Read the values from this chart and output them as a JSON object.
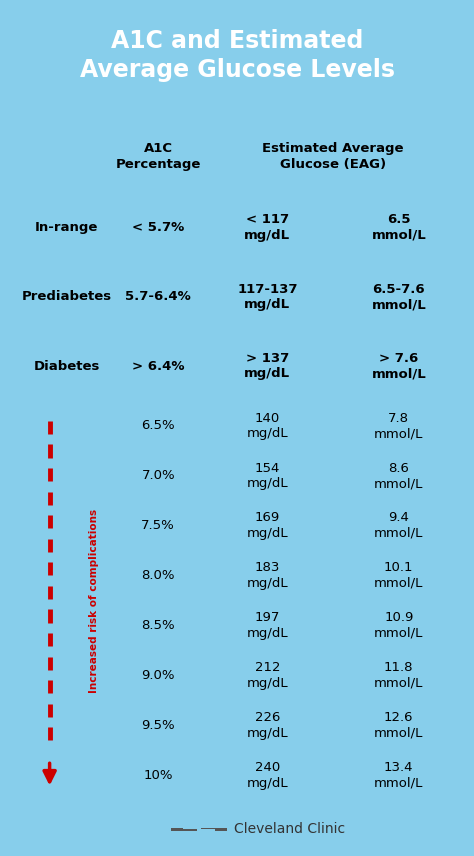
{
  "title": "A1C and Estimated\nAverage Glucose Levels",
  "title_bg": "#1a9fcc",
  "title_color": "#ffffff",
  "bg_color": "#87ceeb",
  "col_header_texts": [
    "A1C\nPercentage",
    "Estimated Average\nGlucose (EAG)"
  ],
  "rows": [
    {
      "label": "In-range",
      "a1c": "< 5.7%",
      "mgdl": "< 117\nmg/dL",
      "mmol": "6.5\nmmol/L",
      "label_bg": "#ffffff",
      "a1c_bg": "#7ec850",
      "mgdl_bg": "#7ec850",
      "mmol_bg": "#e8e040"
    },
    {
      "label": "Prediabetes",
      "a1c": "5.7-6.4%",
      "mgdl": "117-137\nmg/dL",
      "mmol": "6.5-7.6\nmmol/L",
      "label_bg": "#ffffff",
      "a1c_bg": "#f0e040",
      "mgdl_bg": "#f0e040",
      "mmol_bg": "#f0e040"
    },
    {
      "label": "Diabetes",
      "a1c": "> 6.4%",
      "mgdl": "> 137\nmg/dL",
      "mmol": "> 7.6\nmmol/L",
      "label_bg": "#ffffff",
      "a1c_bg": "#f08080",
      "mgdl_bg": "#f08080",
      "mmol_bg": "#f08080"
    }
  ],
  "detail_rows": [
    {
      "a1c": "6.5%",
      "mgdl": "140\nmg/dL",
      "mmol": "7.8\nmmol/L",
      "bg": "#f5a0a0"
    },
    {
      "a1c": "7.0%",
      "mgdl": "154\nmg/dL",
      "mmol": "8.6\nmmol/L",
      "bg": "#f09090"
    },
    {
      "a1c": "7.5%",
      "mgdl": "169\nmg/dL",
      "mmol": "9.4\nmmol/L",
      "bg": "#eb8080"
    },
    {
      "a1c": "8.0%",
      "mgdl": "183\nmg/dL",
      "mmol": "10.1\nmmol/L",
      "bg": "#e57070"
    },
    {
      "a1c": "8.5%",
      "mgdl": "197\nmg/dL",
      "mmol": "10.9\nmmol/L",
      "bg": "#e06060"
    },
    {
      "a1c": "9.0%",
      "mgdl": "212\nmg/dL",
      "mmol": "11.8\nmmol/L",
      "bg": "#da5050"
    },
    {
      "a1c": "9.5%",
      "mgdl": "226\nmg/dL",
      "mmol": "12.6\nmmol/L",
      "bg": "#d54040"
    },
    {
      "a1c": "10%",
      "mgdl": "240\nmg/dL",
      "mmol": "13.4\nmmol/L",
      "bg": "#cc2020"
    }
  ],
  "side_label": "Increased risk of complications",
  "side_label_color": "#cc0000",
  "footer_text": "Cleveland Clinic",
  "footer_color": "#333333"
}
